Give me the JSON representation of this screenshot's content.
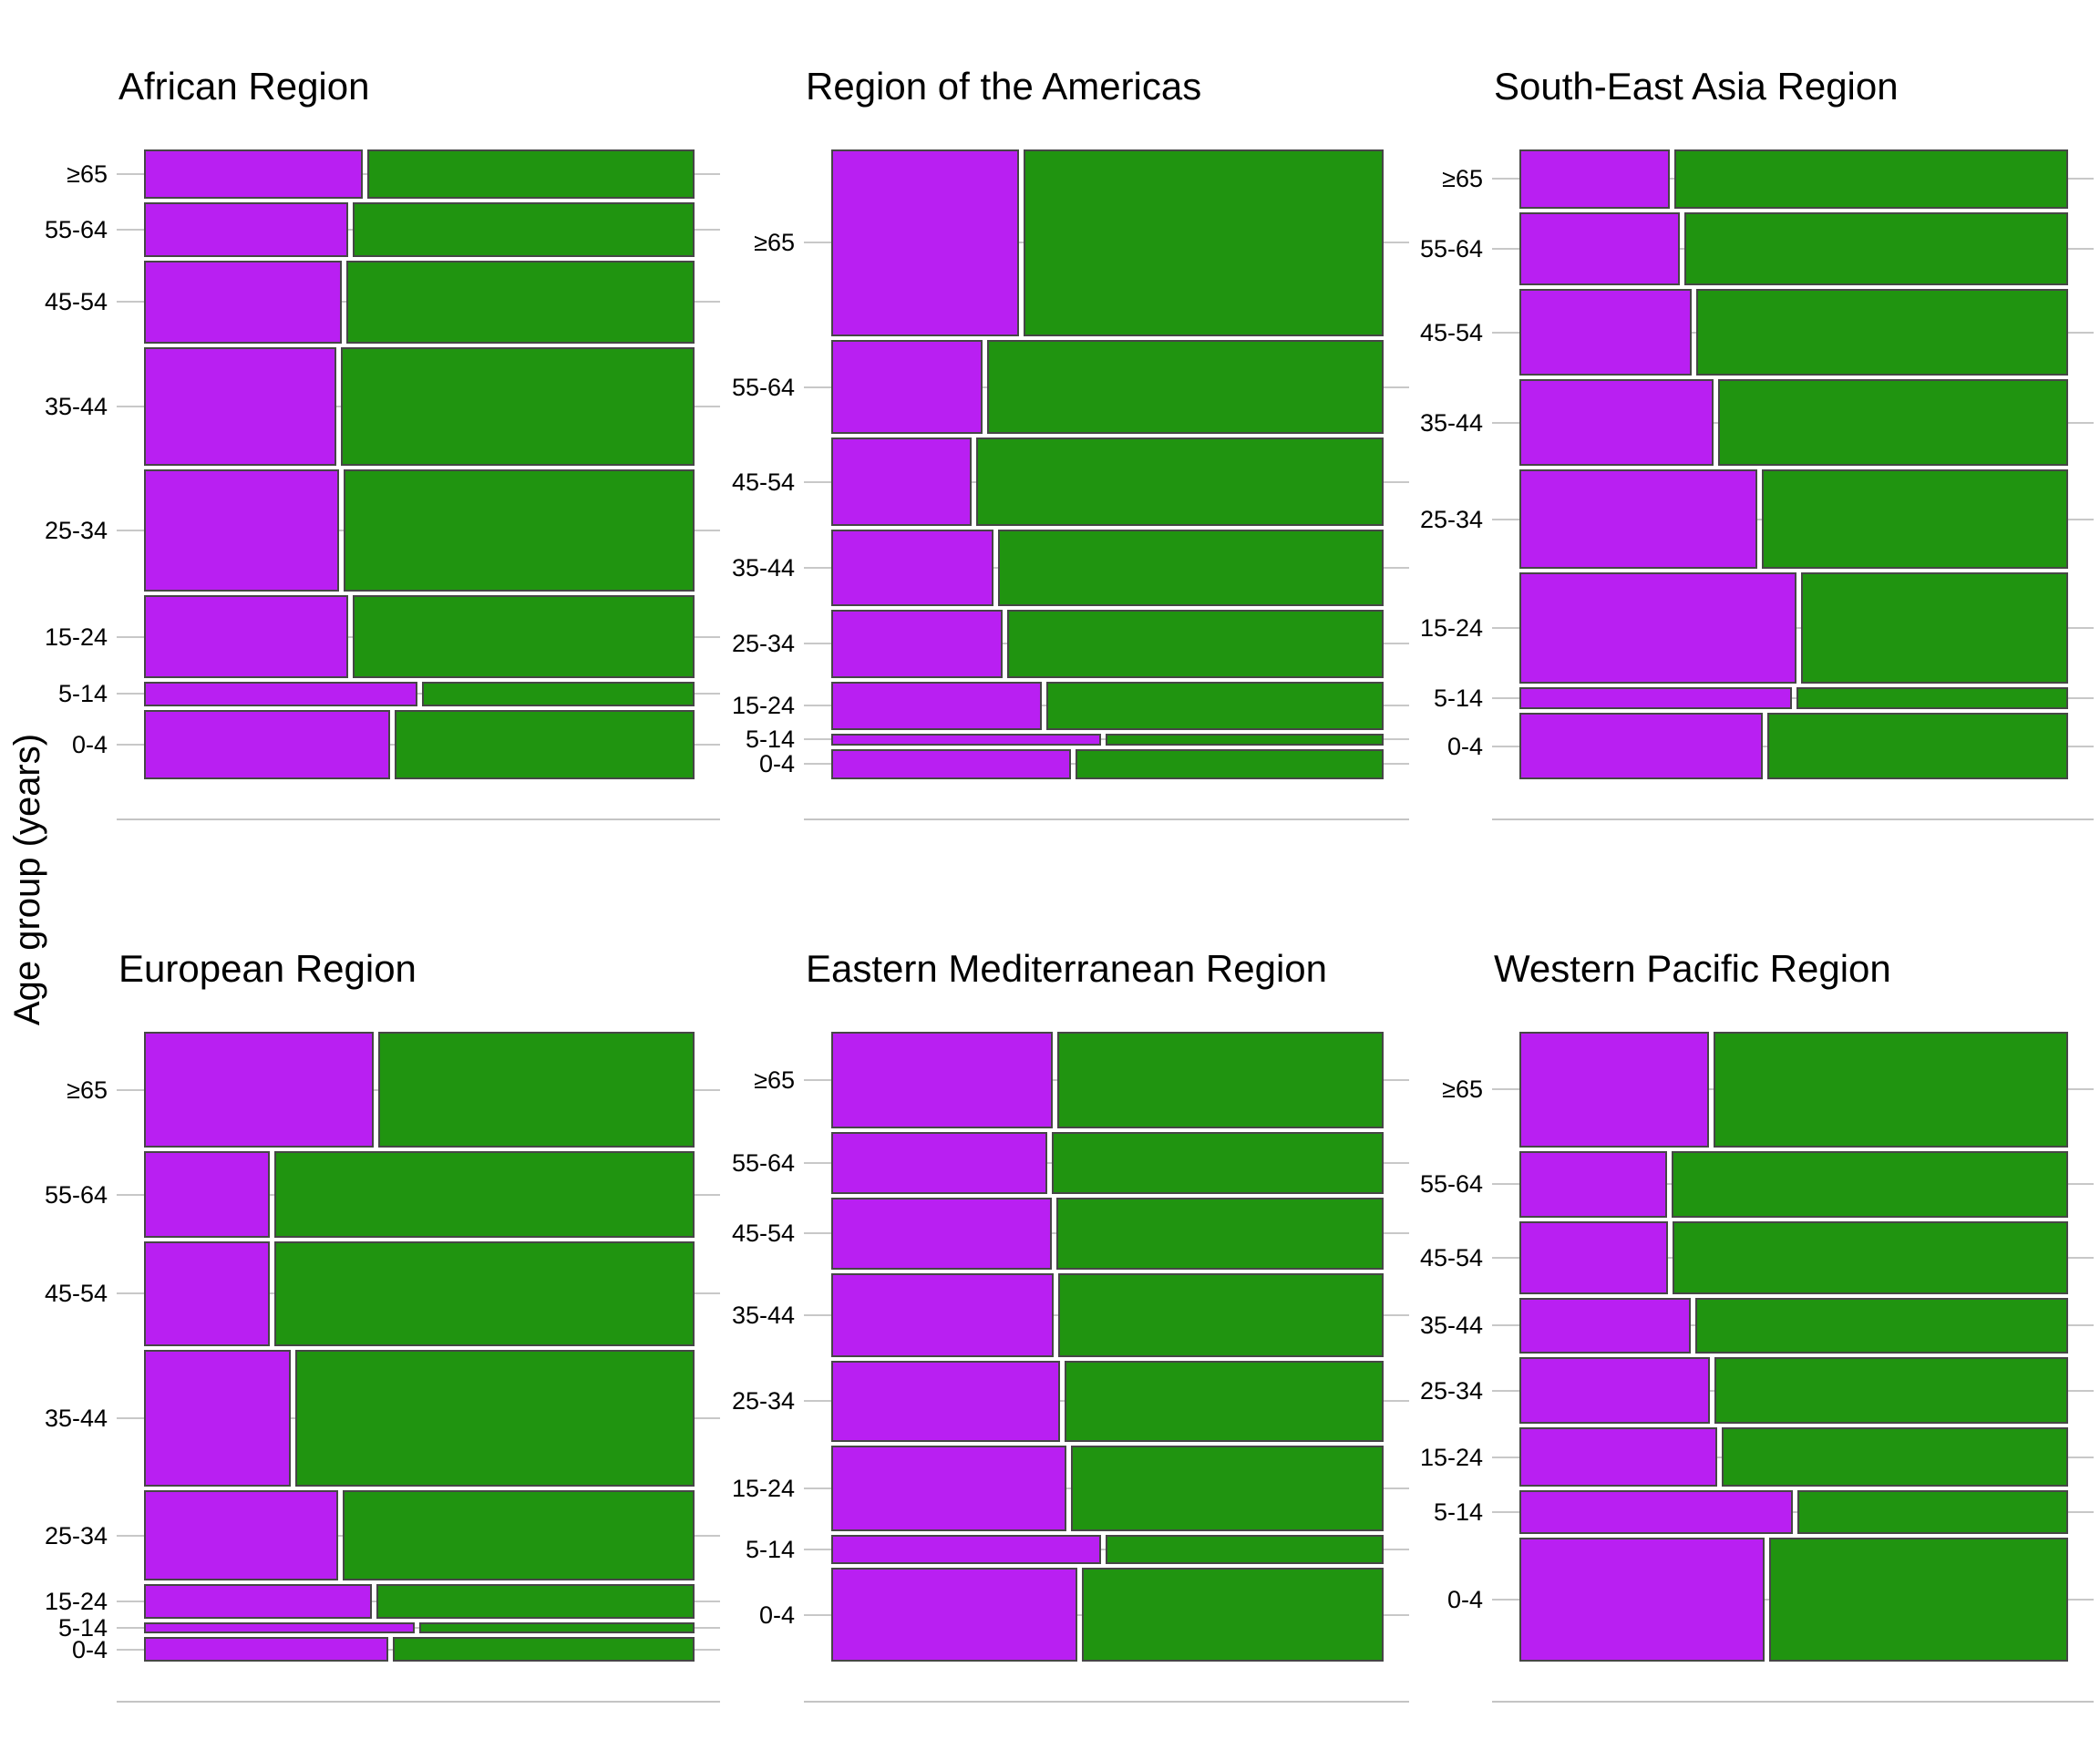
{
  "chart_data": {
    "type": "mosaic",
    "ylabel": "Age group (years)",
    "legend": "none",
    "grid": "horizontal gridlines at each age-group center, drawn behind bars",
    "colors": {
      "purple_segment": "#b91ff2",
      "green_segment": "#209410",
      "segment_border": "#464646",
      "gridline": "#c8c8c8",
      "axis_line": "#c4c4c4",
      "background": "#ffffff",
      "text": "#000000"
    },
    "age_groups_top_to_bottom": [
      "≥65",
      "55-64",
      "45-54",
      "35-44",
      "25-34",
      "15-24",
      "5-14",
      "0-4"
    ],
    "value_semantics": "height_fraction = share of panel height for the age-group row; purple_fraction = proportion of the row width filled by the left (purple) segment, remainder is green",
    "panels": [
      {
        "title": "African Region",
        "rows": [
          {
            "age": "≥65",
            "height_fraction": 0.081,
            "purple_fraction": 0.4
          },
          {
            "age": "55-64",
            "height_fraction": 0.091,
            "purple_fraction": 0.374
          },
          {
            "age": "45-54",
            "height_fraction": 0.137,
            "purple_fraction": 0.362
          },
          {
            "age": "35-44",
            "height_fraction": 0.197,
            "purple_fraction": 0.353
          },
          {
            "age": "25-34",
            "height_fraction": 0.202,
            "purple_fraction": 0.357
          },
          {
            "age": "15-24",
            "height_fraction": 0.137,
            "purple_fraction": 0.374
          },
          {
            "age": "5-14",
            "height_fraction": 0.04,
            "purple_fraction": 0.5
          },
          {
            "age": "0-4",
            "height_fraction": 0.115,
            "purple_fraction": 0.45
          }
        ]
      },
      {
        "title": "Region of the Americas",
        "rows": [
          {
            "age": "≥65",
            "height_fraction": 0.309,
            "purple_fraction": 0.342
          },
          {
            "age": "55-64",
            "height_fraction": 0.156,
            "purple_fraction": 0.277
          },
          {
            "age": "45-54",
            "height_fraction": 0.146,
            "purple_fraction": 0.256
          },
          {
            "age": "35-44",
            "height_fraction": 0.126,
            "purple_fraction": 0.297
          },
          {
            "age": "25-34",
            "height_fraction": 0.114,
            "purple_fraction": 0.312
          },
          {
            "age": "15-24",
            "height_fraction": 0.079,
            "purple_fraction": 0.385
          },
          {
            "age": "5-14",
            "height_fraction": 0.02,
            "purple_fraction": 0.492
          },
          {
            "age": "0-4",
            "height_fraction": 0.05,
            "purple_fraction": 0.437
          }
        ]
      },
      {
        "title": "South-East Asia Region",
        "rows": [
          {
            "age": "≥65",
            "height_fraction": 0.098,
            "purple_fraction": 0.277
          },
          {
            "age": "55-64",
            "height_fraction": 0.121,
            "purple_fraction": 0.295
          },
          {
            "age": "45-54",
            "height_fraction": 0.143,
            "purple_fraction": 0.317
          },
          {
            "age": "35-44",
            "height_fraction": 0.144,
            "purple_fraction": 0.356
          },
          {
            "age": "25-34",
            "height_fraction": 0.164,
            "purple_fraction": 0.438
          },
          {
            "age": "15-24",
            "height_fraction": 0.183,
            "purple_fraction": 0.509
          },
          {
            "age": "5-14",
            "height_fraction": 0.037,
            "purple_fraction": 0.501
          },
          {
            "age": "0-4",
            "height_fraction": 0.11,
            "purple_fraction": 0.448
          }
        ]
      },
      {
        "title": "European Region",
        "rows": [
          {
            "age": "≥65",
            "height_fraction": 0.192,
            "purple_fraction": 0.42
          },
          {
            "age": "55-64",
            "height_fraction": 0.143,
            "purple_fraction": 0.23
          },
          {
            "age": "45-54",
            "height_fraction": 0.173,
            "purple_fraction": 0.231
          },
          {
            "age": "35-44",
            "height_fraction": 0.227,
            "purple_fraction": 0.268
          },
          {
            "age": "25-34",
            "height_fraction": 0.149,
            "purple_fraction": 0.355
          },
          {
            "age": "15-24",
            "height_fraction": 0.057,
            "purple_fraction": 0.417
          },
          {
            "age": "5-14",
            "height_fraction": 0.019,
            "purple_fraction": 0.496
          },
          {
            "age": "0-4",
            "height_fraction": 0.04,
            "purple_fraction": 0.448
          }
        ]
      },
      {
        "title": "Eastern Mediterranean Region",
        "rows": [
          {
            "age": "≥65",
            "height_fraction": 0.16,
            "purple_fraction": 0.405
          },
          {
            "age": "55-64",
            "height_fraction": 0.102,
            "purple_fraction": 0.395
          },
          {
            "age": "45-54",
            "height_fraction": 0.12,
            "purple_fraction": 0.402
          },
          {
            "age": "35-44",
            "height_fraction": 0.138,
            "purple_fraction": 0.406
          },
          {
            "age": "25-34",
            "height_fraction": 0.134,
            "purple_fraction": 0.417
          },
          {
            "age": "15-24",
            "height_fraction": 0.143,
            "purple_fraction": 0.43
          },
          {
            "age": "5-14",
            "height_fraction": 0.048,
            "purple_fraction": 0.492
          },
          {
            "age": "0-4",
            "height_fraction": 0.155,
            "purple_fraction": 0.45
          }
        ]
      },
      {
        "title": "Western Pacific Region",
        "rows": [
          {
            "age": "≥65",
            "height_fraction": 0.191,
            "purple_fraction": 0.348
          },
          {
            "age": "55-64",
            "height_fraction": 0.111,
            "purple_fraction": 0.271
          },
          {
            "age": "45-54",
            "height_fraction": 0.12,
            "purple_fraction": 0.273
          },
          {
            "age": "35-44",
            "height_fraction": 0.092,
            "purple_fraction": 0.315
          },
          {
            "age": "25-34",
            "height_fraction": 0.111,
            "purple_fraction": 0.35
          },
          {
            "age": "15-24",
            "height_fraction": 0.098,
            "purple_fraction": 0.363
          },
          {
            "age": "5-14",
            "height_fraction": 0.072,
            "purple_fraction": 0.503
          },
          {
            "age": "0-4",
            "height_fraction": 0.205,
            "purple_fraction": 0.451
          }
        ]
      }
    ]
  }
}
